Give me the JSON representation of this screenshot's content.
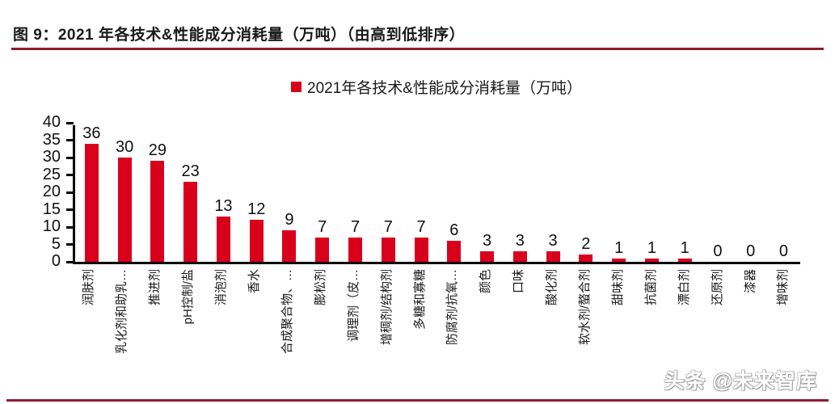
{
  "figure": {
    "title": "图 9：2021 年各技术&性能成分消耗量（万吨）（由高到低排序）",
    "watermark": "头条 @未来智库"
  },
  "colors": {
    "bar": "#D9001B",
    "rule": "#8E1B2F",
    "axis": "#000000"
  },
  "chart_data": {
    "type": "bar",
    "title": "2021年各技术&性能成分消耗量（万吨）",
    "legend": [
      "2021年各技术&性能成分消耗量（万吨）"
    ],
    "legend_position": "top-center",
    "categories": [
      "润肤剂",
      "乳化剂和助乳…",
      "推进剂",
      "pH控制/盐",
      "消泡剂",
      "香水",
      "合成聚合物、…",
      "膨松剂",
      "调理剂（皮…",
      "增稠剂/结构剂",
      "多糖和寡糖",
      "防腐剂/抗氧…",
      "颜色",
      "口味",
      "酸化剂",
      "软水剂/螯合剂",
      "甜味剂",
      "抗菌剂",
      "漂白剂",
      "还原剂",
      "漆器",
      "增味剂"
    ],
    "values": [
      36,
      30,
      29,
      23,
      13,
      12,
      9,
      7,
      7,
      7,
      7,
      6,
      3,
      3,
      3,
      2,
      1,
      1,
      1,
      0,
      0,
      0
    ],
    "xlabel": "",
    "ylabel": "",
    "ylim": [
      0,
      40
    ],
    "yticks": [
      0,
      5,
      10,
      15,
      20,
      25,
      30,
      35,
      40
    ],
    "grid": false,
    "x_tick_rotation": 90,
    "bar_color": "#D9001B"
  }
}
